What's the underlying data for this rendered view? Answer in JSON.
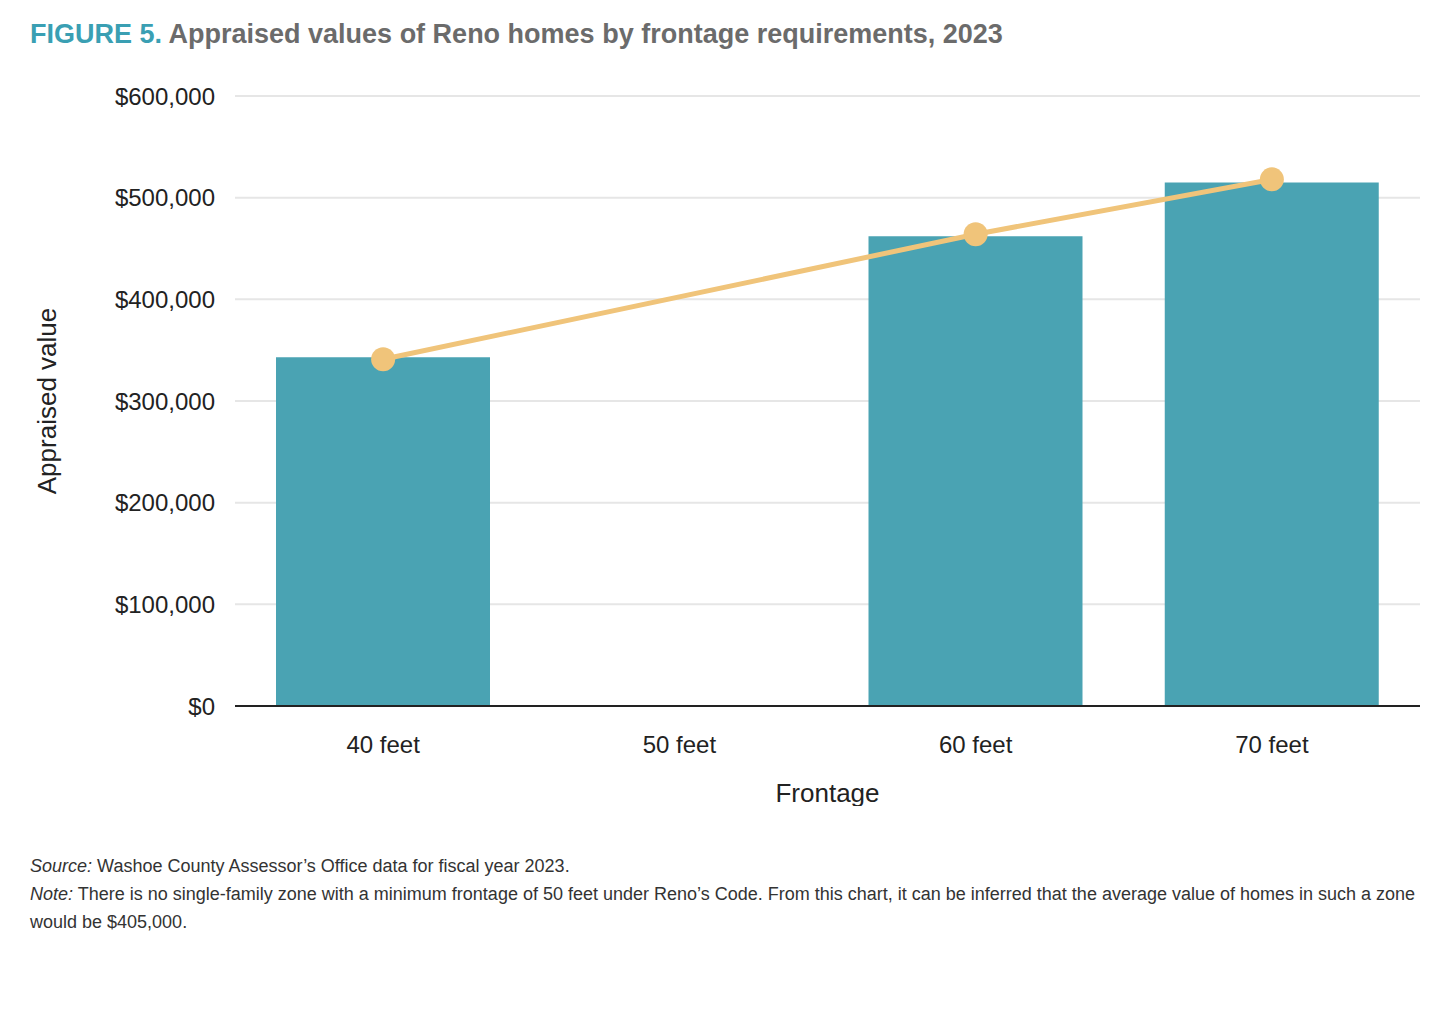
{
  "figure_label": "FIGURE 5.",
  "chart_data": {
    "type": "bar",
    "title": "Appraised values of Reno homes by frontage requirements, 2023",
    "x_label": "Frontage",
    "y_label": "Appraised value",
    "categories": [
      "40 feet",
      "50 feet",
      "60 feet",
      "70 feet"
    ],
    "series": [
      {
        "type": "bar",
        "color": "#4aa3b3",
        "values": [
          343000,
          null,
          462000,
          515000
        ]
      },
      {
        "type": "line",
        "color": "#f0c47a",
        "marker": "circle",
        "values": [
          341000,
          null,
          464000,
          518000
        ]
      }
    ],
    "ylim": [
      0,
      600000
    ],
    "yticks": [
      {
        "value": 0,
        "label": "$0"
      },
      {
        "value": 100000,
        "label": "$100,000"
      },
      {
        "value": 200000,
        "label": "$200,000"
      },
      {
        "value": 300000,
        "label": "$300,000"
      },
      {
        "value": 400000,
        "label": "$400,000"
      },
      {
        "value": 500000,
        "label": "$500,000"
      },
      {
        "value": 600000,
        "label": "$600,000"
      }
    ],
    "grid": true
  },
  "footnotes": [
    {
      "label": "Source:",
      "text": "Washoe County Assessor’s Office data for fiscal year 2023."
    },
    {
      "label": "Note:",
      "text": "There is no single-family zone with a minimum frontage of 50 feet under Reno’s Code. From this chart, it can be inferred that the average value of homes in such a zone would be $405,000."
    }
  ]
}
